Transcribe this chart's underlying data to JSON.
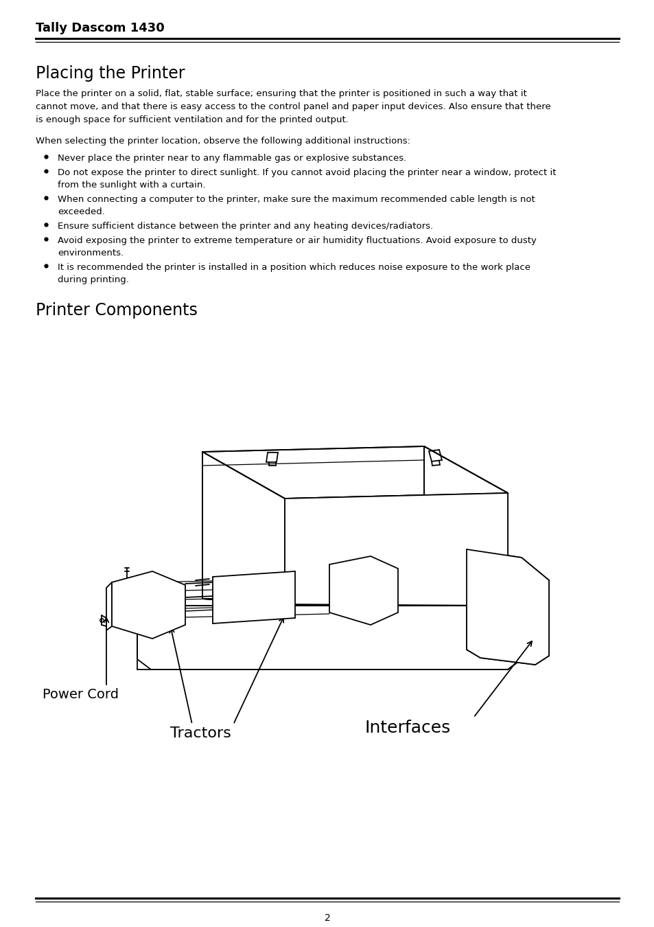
{
  "title": "Tally Dascom 1430",
  "section1_heading": "Placing the Printer",
  "body_line1": "Place the printer on a solid, flat, stable surface; ensuring that the printer is positioned in such a way that it",
  "body_line2": "cannot move, and that there is easy access to the control panel and paper input devices. Also ensure that there",
  "body_line3": "is enough space for sufficient ventilation and for the printed output.",
  "intro2": "When selecting the printer location, observe the following additional instructions:",
  "bullet1_line1": "Never place the printer near to any flammable gas or explosive substances.",
  "bullet2_line1": "Do not expose the printer to direct sunlight. If you cannot avoid placing the printer near a window, protect it",
  "bullet2_line2": "from the sunlight with a curtain.",
  "bullet3_line1": "When connecting a computer to the printer, make sure the maximum recommended cable length is not",
  "bullet3_line2": "exceeded.",
  "bullet4_line1": "Ensure sufficient distance between the printer and any heating devices/radiators.",
  "bullet5_line1": "Avoid exposing the printer to extreme temperature or air humidity fluctuations. Avoid exposure to dusty",
  "bullet5_line2": "environments.",
  "bullet6_line1": "It is recommended the printer is installed in a position which reduces noise exposure to the work place",
  "bullet6_line2": "during printing.",
  "section2_heading": "Printer Components",
  "label_power_cord": "Power Cord",
  "label_tractors": "Tractors",
  "label_interfaces": "Interfaces",
  "page_number": "2",
  "bg_color": "#ffffff",
  "text_color": "#000000"
}
